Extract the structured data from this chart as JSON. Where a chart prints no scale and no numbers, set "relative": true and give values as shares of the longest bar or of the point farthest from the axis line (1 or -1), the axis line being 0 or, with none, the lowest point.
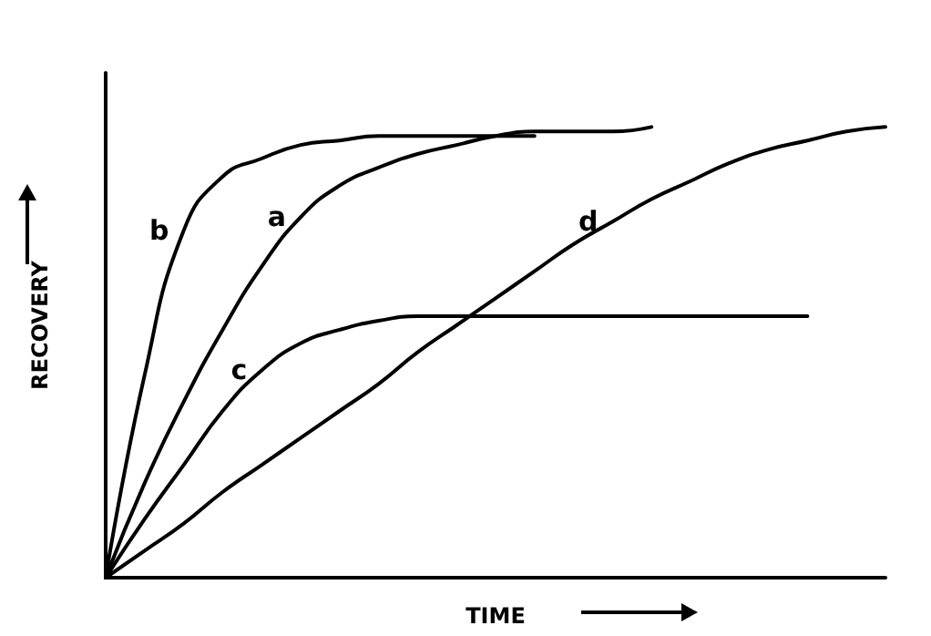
{
  "chart_data": {
    "type": "line",
    "relative": true,
    "xlabel": "TIME",
    "ylabel": "RECOVERY",
    "grid": false,
    "legend": false,
    "marker": "none",
    "line_style": "solid",
    "categories": [
      null,
      null,
      null,
      null,
      null,
      null,
      null,
      null,
      null,
      null,
      null,
      null,
      null,
      null,
      null,
      null,
      null,
      null,
      null,
      null,
      null
    ],
    "series": [
      {
        "name": "b",
        "color": "#000000",
        "values": [
          0,
          0.45,
          0.77,
          0.89,
          0.93,
          0.96,
          0.97,
          0.98,
          0.98,
          0.98,
          0.98,
          0.98,
          null,
          null,
          null,
          null,
          null,
          null,
          null,
          null,
          null
        ]
      },
      {
        "name": "a",
        "color": "#000000",
        "values": [
          0,
          0.21,
          0.39,
          0.55,
          0.69,
          0.8,
          0.87,
          0.91,
          0.94,
          0.96,
          0.98,
          0.99,
          0.99,
          0.99,
          1.0,
          null,
          null,
          null,
          null,
          null,
          null
        ]
      },
      {
        "name": "c",
        "color": "#000000",
        "values": [
          0,
          0.13,
          0.25,
          0.37,
          0.46,
          0.52,
          0.55,
          0.57,
          0.58,
          0.58,
          0.58,
          0.58,
          0.58,
          0.58,
          0.58,
          0.58,
          0.58,
          0.58,
          0.58,
          null,
          null
        ]
      },
      {
        "name": "d",
        "color": "#000000",
        "values": [
          0,
          0.06,
          0.12,
          0.19,
          0.25,
          0.31,
          0.37,
          0.43,
          0.5,
          0.56,
          0.62,
          0.68,
          0.74,
          0.79,
          0.84,
          0.88,
          0.92,
          0.95,
          0.97,
          0.99,
          1.0
        ]
      }
    ]
  }
}
